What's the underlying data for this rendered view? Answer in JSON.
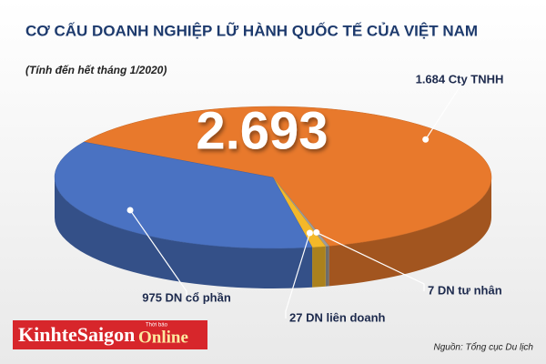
{
  "chart_data": {
    "type": "pie3d",
    "title": "CƠ CẤU DOANH NGHIỆP LỮ HÀNH QUỐC TẾ CỦA VIỆT NAM",
    "subtitle": "(Tính đến hết tháng 1/2020)",
    "total": 2693,
    "total_label": "2.693",
    "values": [
      1684,
      7,
      27,
      975
    ],
    "value_labels": [
      "1.684 Cty TNHH",
      "7 DN tư nhân",
      "27 DN liên doanh",
      "975 DN cổ phần"
    ],
    "colors": [
      "#e8792c",
      "#9c9c9c",
      "#f4b829",
      "#4a72c2"
    ],
    "source": "Nguồn: Tổng cục Du lịch"
  },
  "branding": {
    "main": "KinhteSaigon",
    "accent": "Online",
    "tag": "Thời báo"
  }
}
